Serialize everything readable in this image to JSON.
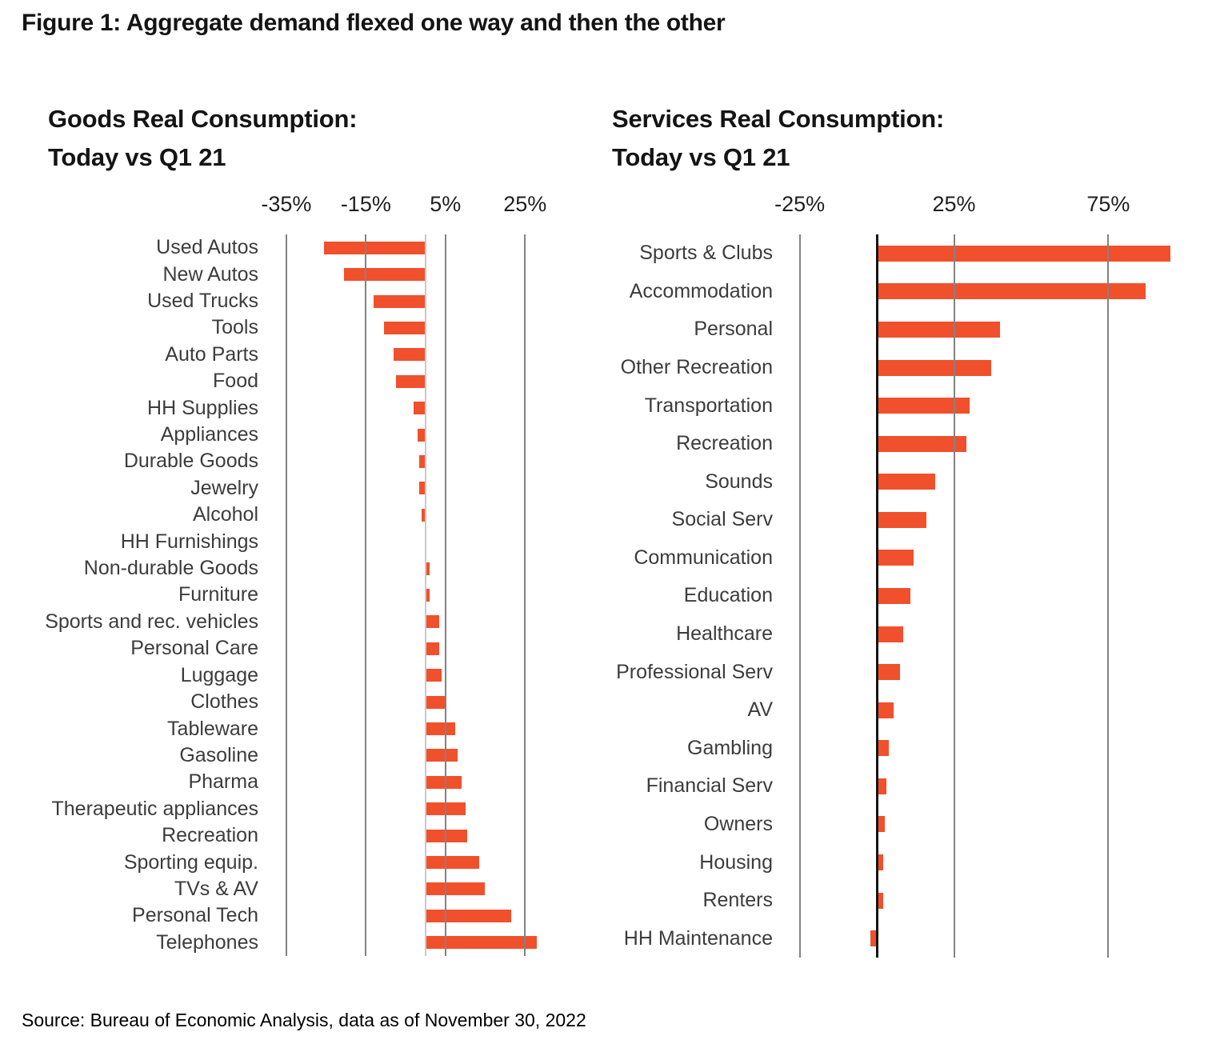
{
  "figure": {
    "title": "Figure 1: Aggregate demand flexed one way and then the other",
    "source": "Source: Bureau of Economic Analysis, data as of November 30, 2022"
  },
  "colors": {
    "bar": "#F0502B",
    "gridline": "#828282",
    "axis_label_text": "#1F1F1F",
    "category_label_text": "#3C3C3C",
    "title_text": "#141414"
  },
  "chart_data": [
    {
      "type": "bar",
      "orientation": "horizontal",
      "title": "Goods Real Consumption: Today vs Q1 21",
      "title_lines": [
        "Goods Real Consumption:",
        "Today vs Q1 21"
      ],
      "unit": "%",
      "xlim": [
        -39.6,
        33.8
      ],
      "ticks": [
        -35,
        -15,
        5,
        25
      ],
      "tick_labels": [
        "-35%",
        "-15%",
        "5%",
        "25%"
      ],
      "grid": true,
      "legend": "none",
      "zero_line_color": "#C9C9C9",
      "zero_line_width": 2,
      "bar_thickness": 16,
      "categories": [
        "Used Autos",
        "New Autos",
        "Used Trucks",
        "Tools",
        "Auto Parts",
        "Food",
        "HH Supplies",
        "Appliances",
        "Durable Goods",
        "Jewelry",
        "Alcohol",
        "HH Furnishings",
        "Non-durable Goods",
        "Furniture",
        "Sports and rec. vehicles",
        "Personal Care",
        "Luggage",
        "Clothes",
        "Tableware",
        "Gasoline",
        "Pharma",
        "Therapeutic appliances",
        "Recreation",
        "Sporting equip.",
        "TVs & AV",
        "Personal Tech",
        "Telephones"
      ],
      "values": [
        -25.5,
        -20.5,
        -13,
        -10.5,
        -8,
        -7.5,
        -3,
        -2,
        -1.5,
        -1.5,
        -1,
        0,
        1,
        1,
        3.5,
        3.5,
        4,
        5,
        7.5,
        8,
        9,
        10,
        10.5,
        13.5,
        15,
        21.5,
        28
      ]
    },
    {
      "type": "bar",
      "orientation": "horizontal",
      "title": "Services Real Consumption: Today vs Q1 21",
      "title_lines": [
        "Services Real Consumption:",
        "Today vs Q1 21"
      ],
      "unit": "%",
      "xlim": [
        -30.6,
        103.4
      ],
      "ticks": [
        -25,
        25,
        75
      ],
      "tick_labels": [
        "-25%",
        "25%",
        "75%"
      ],
      "grid": true,
      "legend": "none",
      "zero_line_color": "#141414",
      "zero_line_width": 3,
      "bar_thickness": 20,
      "categories": [
        "Sports & Clubs",
        "Accommodation",
        "Personal",
        "Other Recreation",
        "Transportation",
        "Recreation",
        "Sounds",
        "Social Serv",
        "Communication",
        "Education",
        "Healthcare",
        "Professional Serv",
        "AV",
        "Gambling",
        "Financial Serv",
        "Owners",
        "Housing",
        "Renters",
        "HH Maintenance"
      ],
      "values": [
        95,
        87,
        40,
        37,
        30,
        29,
        19,
        16,
        12,
        11,
        8.5,
        7.5,
        5.5,
        4,
        3,
        2.5,
        2,
        2,
        -2
      ]
    }
  ]
}
